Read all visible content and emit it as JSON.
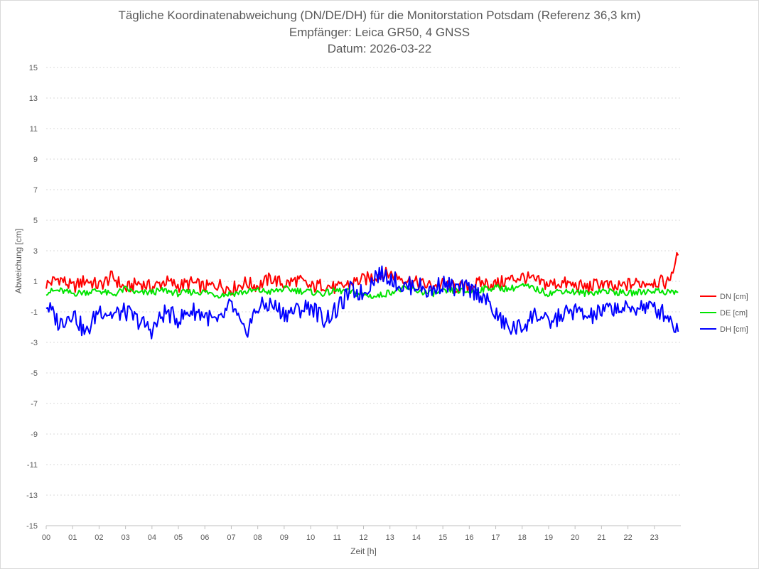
{
  "chart_data": {
    "type": "line",
    "title": "Tägliche Koordinatenabweichung (DN/DE/DH) für die Monitorstation Potsdam (Referenz 36,3 km)",
    "subtitle": "Empfänger: Leica GR50, 4 GNSS",
    "date_line": "Datum: 2026-03-22",
    "xlabel": "Zeit [h]",
    "ylabel": "Abweichung [cm]",
    "xlim": [
      0,
      24
    ],
    "ylim": [
      -15,
      15
    ],
    "x_tick_labels": [
      "00",
      "01",
      "02",
      "03",
      "04",
      "05",
      "06",
      "07",
      "08",
      "09",
      "10",
      "11",
      "12",
      "13",
      "14",
      "15",
      "16",
      "17",
      "18",
      "19",
      "20",
      "21",
      "22",
      "23"
    ],
    "y_tick_labels": [
      "15",
      "13",
      "11",
      "9",
      "7",
      "5",
      "3",
      "1",
      "-1",
      "-3",
      "-5",
      "-7",
      "-9",
      "-11",
      "-13",
      "-15"
    ],
    "grid": true,
    "legend_position": "right",
    "x": [
      0,
      0.5,
      1,
      1.5,
      2,
      2.5,
      3,
      3.5,
      4,
      4.5,
      5,
      5.5,
      6,
      6.5,
      7,
      7.5,
      8,
      8.5,
      9,
      9.5,
      10,
      10.5,
      11,
      11.5,
      12,
      12.5,
      13,
      13.5,
      14,
      14.5,
      15,
      15.5,
      16,
      16.5,
      17,
      17.5,
      18,
      18.5,
      19,
      19.5,
      20,
      20.5,
      21,
      21.5,
      22,
      22.5,
      23,
      23.5,
      23.9
    ],
    "series": [
      {
        "name": "DN [cm]",
        "color": "#ff0000",
        "values": [
          0.8,
          1.2,
          0.6,
          1.1,
          0.7,
          1.3,
          0.5,
          0.9,
          0.6,
          1.0,
          0.7,
          0.9,
          0.6,
          0.8,
          0.5,
          0.9,
          0.7,
          1.2,
          0.8,
          1.1,
          0.6,
          0.8,
          0.5,
          0.9,
          1.1,
          1.4,
          1.5,
          1.2,
          0.9,
          0.7,
          0.8,
          0.6,
          0.7,
          0.9,
          0.8,
          1.1,
          1.3,
          1.0,
          0.8,
          0.9,
          0.7,
          0.6,
          0.9,
          0.5,
          0.8,
          0.9,
          1.0,
          0.9,
          2.7
        ]
      },
      {
        "name": "DE [cm]",
        "color": "#00e400",
        "values": [
          0.3,
          0.4,
          0.2,
          0.3,
          0.4,
          0.1,
          0.5,
          0.2,
          0.3,
          0.4,
          0.2,
          0.3,
          0.3,
          0.1,
          0.2,
          0.3,
          0.4,
          0.3,
          0.5,
          0.4,
          0.3,
          0.2,
          0.4,
          0.3,
          0.1,
          0.0,
          0.3,
          0.5,
          0.4,
          0.2,
          0.3,
          0.4,
          0.3,
          0.5,
          0.6,
          0.5,
          0.7,
          0.5,
          0.2,
          0.4,
          0.3,
          0.2,
          0.4,
          0.3,
          0.2,
          0.3,
          0.4,
          0.3,
          0.3
        ]
      },
      {
        "name": "DH [cm]",
        "color": "#0000ff",
        "values": [
          -0.5,
          -1.8,
          -1.0,
          -2.5,
          -0.8,
          -1.2,
          -1.0,
          -1.6,
          -2.2,
          -1.0,
          -1.5,
          -0.9,
          -1.2,
          -1.8,
          -0.5,
          -2.5,
          -0.7,
          -0.5,
          -1.1,
          -0.9,
          -0.6,
          -1.5,
          -0.9,
          0.4,
          0.2,
          1.5,
          1.3,
          0.6,
          0.8,
          0.3,
          0.9,
          0.5,
          0.5,
          0.1,
          -1.2,
          -2.1,
          -2.0,
          -1.1,
          -1.8,
          -1.2,
          -0.9,
          -1.4,
          -1.0,
          -0.7,
          -0.9,
          -0.6,
          -0.8,
          -1.2,
          -2.3
        ]
      }
    ]
  }
}
